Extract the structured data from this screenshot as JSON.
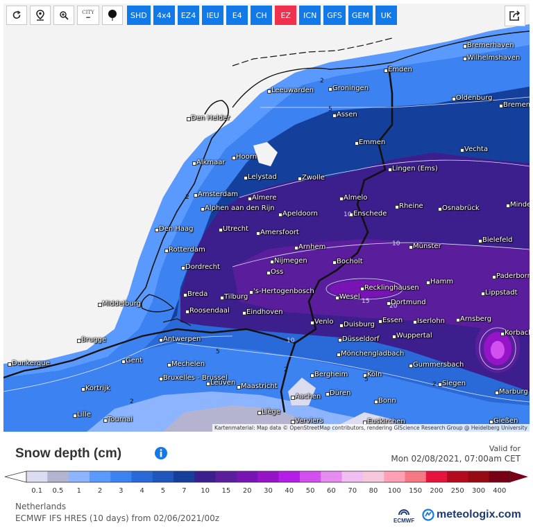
{
  "toolbar": {
    "tools": [
      {
        "name": "refresh-icon"
      },
      {
        "name": "location-pin-icon"
      },
      {
        "name": "zoom-icon"
      },
      {
        "name": "city-icon",
        "label": "CITY"
      },
      {
        "name": "balloon-icon"
      }
    ],
    "models": [
      "SHD",
      "4x4",
      "EZ4",
      "IEU",
      "E4",
      "CH",
      "EZ",
      "ICN",
      "GFS",
      "GEM",
      "UK"
    ],
    "active_model": "EZ",
    "share_icon": "share-icon"
  },
  "map": {
    "attribution": "Kartenmaterial: Map data © OpenStreetMap contributors, rendering GIScience Research Group @ Heidelberg University",
    "cities": [
      "Bremerhaven",
      "Wilhelmshaven",
      "Emden",
      "Leeuwarden",
      "Groningen",
      "Oldenburg",
      "Bremen",
      "Assen",
      "Den Helder",
      "Emmen",
      "Vechta",
      "Hoorn",
      "Alkmaar",
      "Lelystad",
      "Zwolle",
      "Lingen (Ems)",
      "Amsterdam",
      "Almere",
      "Almelo",
      "Rheine",
      "Osnabrück",
      "Minden",
      "Alphen aan den Rijn",
      "Apeldoorn",
      "Enschede",
      "Den Haag",
      "Utrecht",
      "Amersfoort",
      "Bielefeld",
      "Arnhem",
      "Rotterdam",
      "Münster",
      "Nijmegen",
      "Bocholt",
      "Dordrecht",
      "Oss",
      "Paderborn",
      "Recklinghausen",
      "Hamm",
      "'s-Hertogenbosch",
      "Lippstadt",
      "Breda",
      "Wesel",
      "Middelburg",
      "Tilburg",
      "Dortmund",
      "Roosendaal",
      "Eindhoven",
      "Essen",
      "Iserlohn",
      "Arnsberg",
      "Venlo",
      "Duisburg",
      "Korbach",
      "Brugge",
      "Antwerpen",
      "Düsseldorf",
      "Wuppertal",
      "Gent",
      "Mönchengladbach",
      "Dunkerque",
      "Mechelen",
      "Gummersbach",
      "Bruxelles - Brussel",
      "Bergheim",
      "Köln",
      "Leuven",
      "Kortrijk",
      "Maastricht",
      "Siegen",
      "Aachen",
      "Düren",
      "Marburg",
      "Bonn",
      "Lille",
      "Liège",
      "Tournai",
      "Verviers",
      "Euskirchen",
      "Gießen"
    ],
    "contour_labels": [
      "2",
      "2",
      "2",
      "2",
      "2",
      "5",
      "5",
      "5",
      "10",
      "10",
      "10",
      "15",
      "20"
    ]
  },
  "legend": {
    "title": "Snow depth (cm)",
    "info_icon": "info-icon",
    "valid_label": "Valid for",
    "valid_date": "Mon 02/08/2021, 07:00am CET",
    "ticks": [
      "0.1",
      "0.5",
      "1",
      "2",
      "3",
      "4",
      "5",
      "7",
      "10",
      "15",
      "20",
      "30",
      "40",
      "50",
      "60",
      "70",
      "80",
      "100",
      "150",
      "200",
      "250",
      "300",
      "400"
    ],
    "colors": [
      "#dcdcf0",
      "#b4b4d0",
      "#8cb4ff",
      "#5a9aff",
      "#3c82f0",
      "#2a6ad8",
      "#1e56bc",
      "#14409c",
      "#3c1e8c",
      "#5a1e9c",
      "#7814b4",
      "#9614c8",
      "#b41ee6",
      "#d250f0",
      "#e68cf0",
      "#f0bef0",
      "#f5c8dc",
      "#ffa0b4",
      "#f57882",
      "#e6143c",
      "#b40a1e",
      "#960a14",
      "#780014"
    ]
  },
  "footer": {
    "region": "Netherlands",
    "model_run": "ECMWF IFS HRES  (10 days) from 02/06/2021/00z",
    "ecmwf_label": "ECMWF",
    "brand": "meteologix.com"
  }
}
